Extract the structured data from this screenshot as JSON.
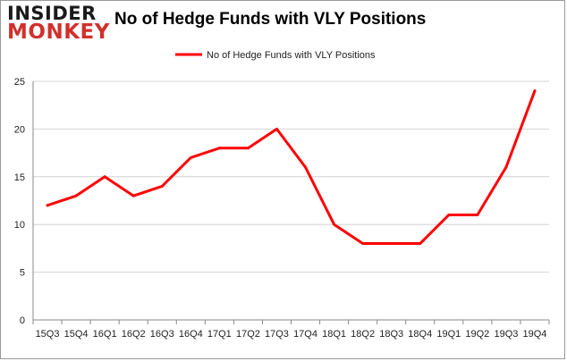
{
  "logo": {
    "line1": "INSIDER",
    "line2": "MONKEY"
  },
  "chart_data": {
    "type": "line",
    "title": "No of Hedge Funds with VLY Positions",
    "categories": [
      "15Q3",
      "15Q4",
      "16Q1",
      "16Q2",
      "16Q3",
      "16Q4",
      "17Q1",
      "17Q2",
      "17Q3",
      "17Q4",
      "18Q1",
      "18Q2",
      "18Q3",
      "18Q4",
      "19Q1",
      "19Q2",
      "19Q3",
      "19Q4"
    ],
    "series": [
      {
        "name": "No of Hedge Funds with VLY Positions",
        "values": [
          12,
          13,
          15,
          13,
          14,
          17,
          18,
          18,
          20,
          16,
          10,
          8,
          8,
          8,
          11,
          11,
          16,
          24
        ],
        "color": "#ff0000"
      }
    ],
    "xlabel": "",
    "ylabel": "",
    "ylim": [
      0,
      25
    ],
    "yticks": [
      "0",
      "5",
      "10",
      "15",
      "20",
      "25"
    ],
    "grid": true,
    "legend": "top-center"
  }
}
